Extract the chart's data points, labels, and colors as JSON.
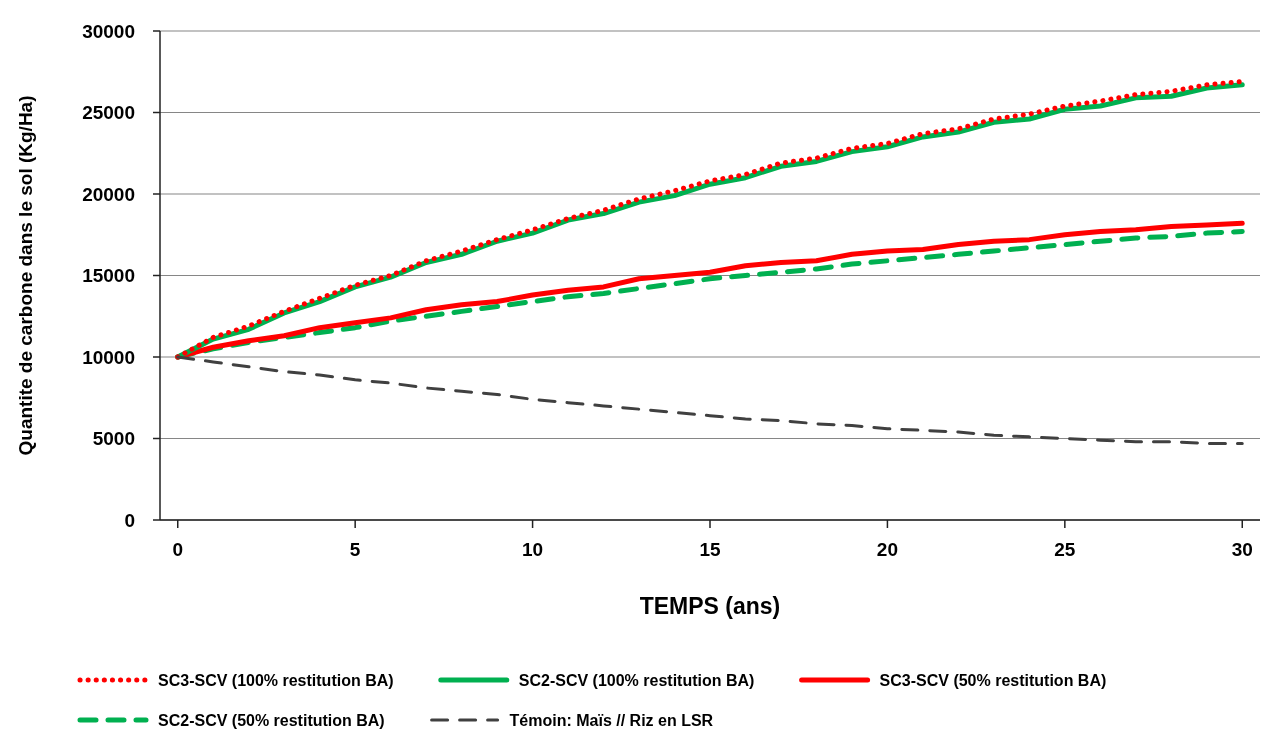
{
  "chart_data": {
    "type": "line",
    "xlabel": "TEMPS (ans)",
    "ylabel": "Quantite de carbone dans le sol (Kg/Ha)",
    "x": [
      0,
      1,
      2,
      3,
      4,
      5,
      6,
      7,
      8,
      9,
      10,
      11,
      12,
      13,
      14,
      15,
      16,
      17,
      18,
      19,
      20,
      21,
      22,
      23,
      24,
      25,
      26,
      27,
      28,
      29,
      30
    ],
    "xlim": [
      -0.5,
      30.5
    ],
    "xticks": [
      0,
      5,
      10,
      15,
      20,
      25,
      30
    ],
    "ylim": [
      0,
      30000
    ],
    "yticks": [
      0,
      5000,
      10000,
      15000,
      20000,
      25000,
      30000
    ],
    "grid": "y",
    "legend": "bottom",
    "series": [
      {
        "name": "SC3-SCV (100% restitution BA)",
        "color": "#ff0000",
        "line_style": "dotted",
        "values": [
          10000,
          11200,
          11900,
          12800,
          13600,
          14400,
          15000,
          15900,
          16500,
          17200,
          17800,
          18500,
          19000,
          19700,
          20200,
          20800,
          21200,
          21900,
          22200,
          22800,
          23100,
          23700,
          24000,
          24600,
          24900,
          25400,
          25700,
          26100,
          26300,
          26700,
          26900
        ]
      },
      {
        "name": "SC2-SCV (100% restitution BA)",
        "color": "#00b050",
        "line_style": "solid",
        "values": [
          10000,
          11100,
          11700,
          12700,
          13400,
          14300,
          14900,
          15800,
          16300,
          17100,
          17600,
          18400,
          18800,
          19500,
          19900,
          20600,
          21000,
          21700,
          22000,
          22600,
          22900,
          23500,
          23800,
          24400,
          24600,
          25200,
          25400,
          25900,
          26000,
          26500,
          26700
        ]
      },
      {
        "name": "SC3-SCV (50% restitution BA)",
        "color": "#ff0000",
        "line_style": "solid",
        "values": [
          10000,
          10600,
          11000,
          11300,
          11800,
          12100,
          12400,
          12900,
          13200,
          13400,
          13800,
          14100,
          14300,
          14800,
          15000,
          15200,
          15600,
          15800,
          15900,
          16300,
          16500,
          16600,
          16900,
          17100,
          17200,
          17500,
          17700,
          17800,
          18000,
          18100,
          18200
        ]
      },
      {
        "name": "SC2-SCV (50% restitution BA)",
        "color": "#00b050",
        "line_style": "dashed",
        "values": [
          10000,
          10500,
          10900,
          11200,
          11500,
          11800,
          12200,
          12500,
          12800,
          13100,
          13400,
          13700,
          13900,
          14200,
          14500,
          14800,
          15000,
          15200,
          15400,
          15700,
          15900,
          16100,
          16300,
          16500,
          16700,
          16900,
          17100,
          17300,
          17400,
          17600,
          17700
        ]
      },
      {
        "name": "Témoin: Maïs // Riz en LSR",
        "color": "#404040",
        "line_style": "dashed",
        "values": [
          10000,
          9700,
          9400,
          9100,
          8900,
          8600,
          8400,
          8100,
          7900,
          7700,
          7400,
          7200,
          7000,
          6800,
          6600,
          6400,
          6200,
          6100,
          5900,
          5800,
          5600,
          5500,
          5400,
          5200,
          5100,
          5000,
          4900,
          4800,
          4800,
          4700,
          4700
        ]
      }
    ]
  }
}
